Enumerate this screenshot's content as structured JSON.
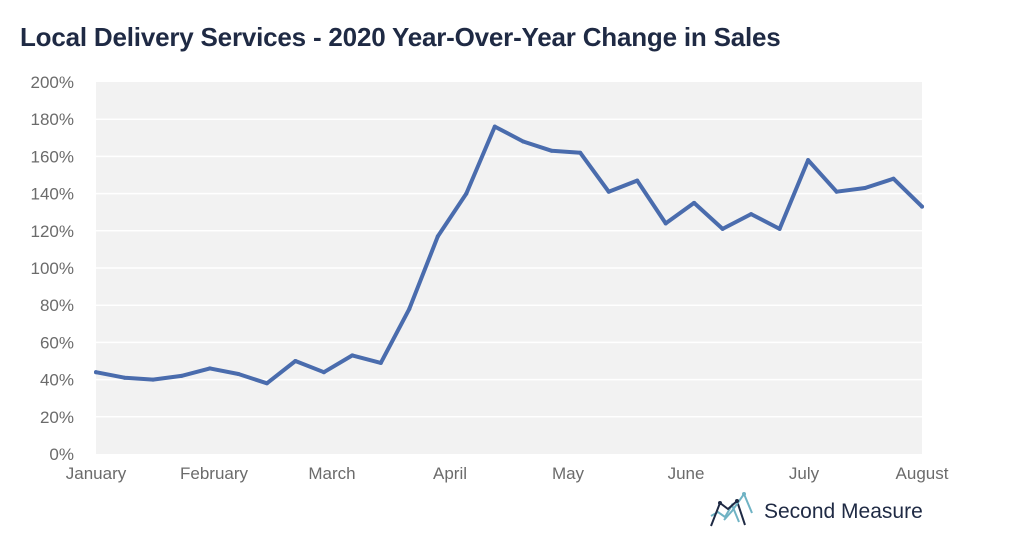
{
  "chart_data": {
    "type": "line",
    "title": "Local Delivery Services - 2020 Year-Over-Year Change in Sales",
    "xlabel": "",
    "ylabel": "",
    "x_tick_labels": [
      "January",
      "February",
      "March",
      "April",
      "May",
      "June",
      "July",
      "August"
    ],
    "y_tick_labels": [
      "0%",
      "20%",
      "40%",
      "60%",
      "80%",
      "100%",
      "120%",
      "140%",
      "160%",
      "180%",
      "200%"
    ],
    "y_ticks": [
      0,
      20,
      40,
      60,
      80,
      100,
      120,
      140,
      160,
      180,
      200
    ],
    "ylim": [
      0,
      200
    ],
    "grid": "horizontal",
    "legend": "none",
    "series": [
      {
        "color": "#4a6cad",
        "values": [
          44,
          41,
          40,
          42,
          46,
          43,
          38,
          50,
          44,
          53,
          49,
          78,
          117,
          140,
          176,
          168,
          163,
          162,
          141,
          147,
          124,
          135,
          121,
          129,
          121,
          158,
          141,
          143,
          148,
          133
        ]
      }
    ]
  },
  "brand": {
    "name": "Second Measure",
    "icon": "line-chart-logo-icon",
    "colors": [
      "#1f2a44",
      "#6fb3c4"
    ]
  },
  "colors": {
    "plot_background": "#f2f2f2",
    "gridline": "#ffffff",
    "title": "#1f2a44",
    "tick_text": "#6b6b6b"
  }
}
